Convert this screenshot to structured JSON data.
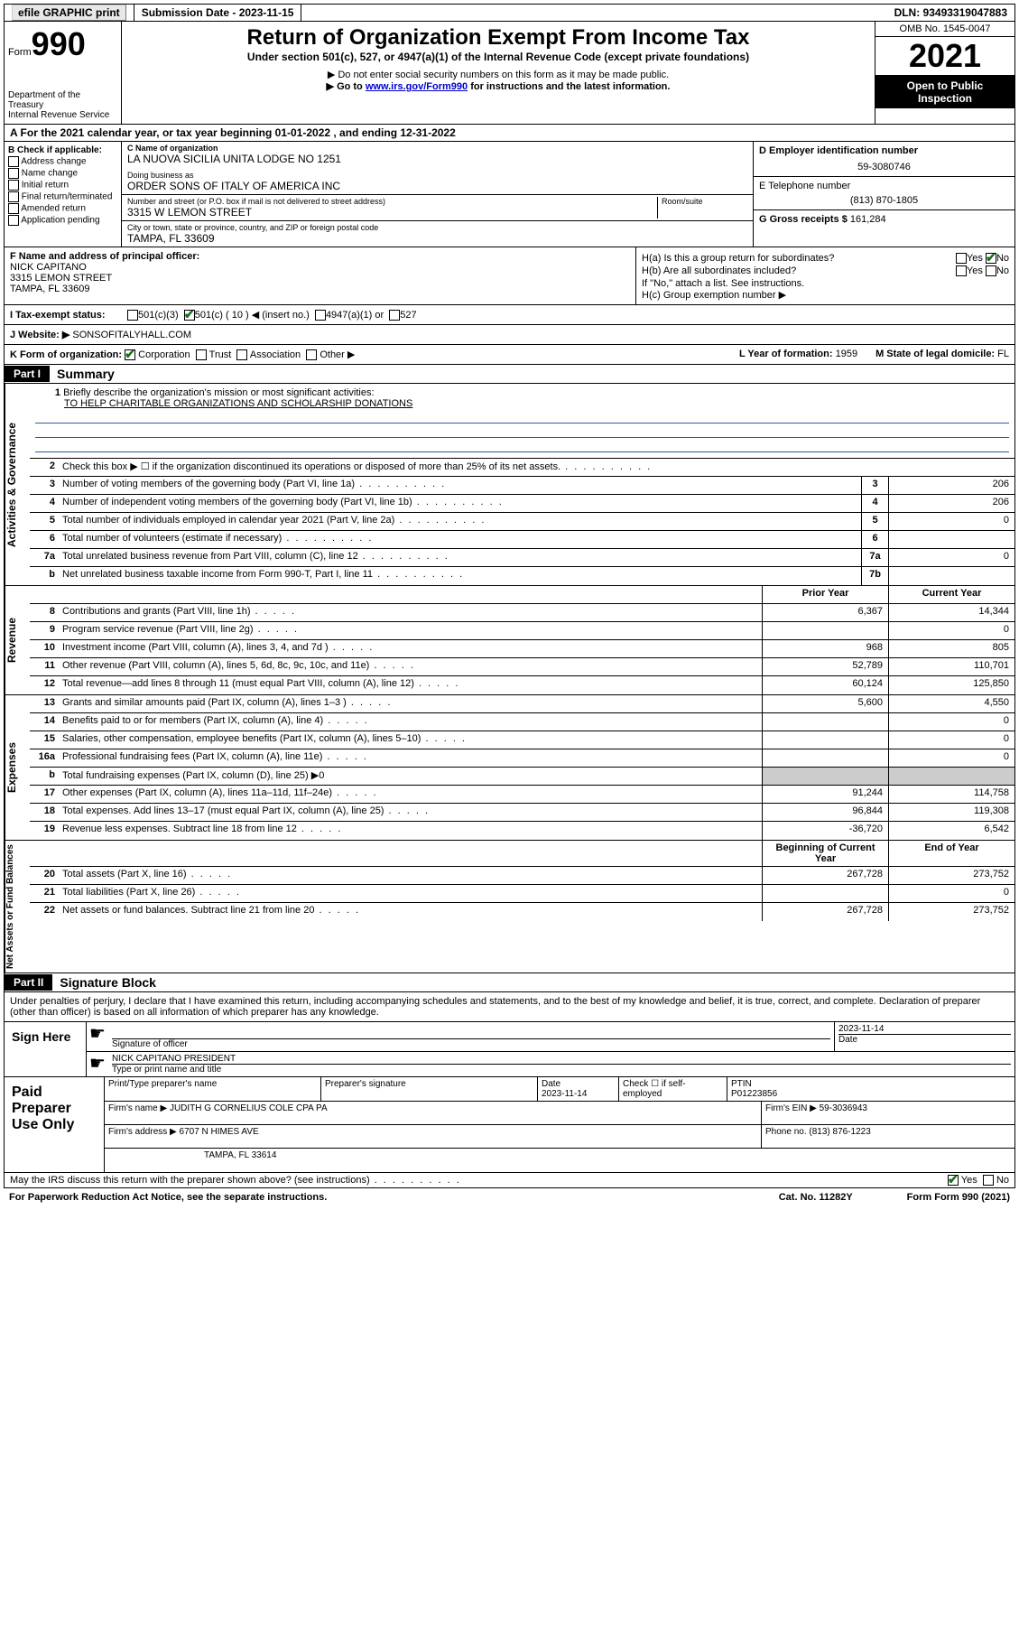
{
  "topbar": {
    "efile_label": "efile GRAPHIC print",
    "submission_label": "Submission Date - 2023-11-15",
    "dln_label": "DLN: 93493319047883"
  },
  "header": {
    "form_prefix": "Form",
    "form_num": "990",
    "dept1": "Department of the Treasury",
    "dept2": "Internal Revenue Service",
    "title": "Return of Organization Exempt From Income Tax",
    "subtitle": "Under section 501(c), 527, or 4947(a)(1) of the Internal Revenue Code (except private foundations)",
    "notice1": "▶ Do not enter social security numbers on this form as it may be made public.",
    "notice2_pre": "▶ Go to ",
    "notice2_link": "www.irs.gov/Form990",
    "notice2_post": " for instructions and the latest information.",
    "omb": "OMB No. 1545-0047",
    "year": "2021",
    "open_pub": "Open to Public Inspection"
  },
  "row_a": "A For the 2021 calendar year, or tax year beginning 01-01-2022   , and ending 12-31-2022",
  "col_b": {
    "hdr": "B Check if applicable:",
    "opts": [
      "Address change",
      "Name change",
      "Initial return",
      "Final return/terminated",
      "Amended return",
      "Application pending"
    ]
  },
  "col_c": {
    "name_label": "C Name of organization",
    "name": "LA NUOVA SICILIA UNITA LODGE NO 1251",
    "dba_label": "Doing business as",
    "dba": "ORDER SONS OF ITALY OF AMERICA INC",
    "addr_label": "Number and street (or P.O. box if mail is not delivered to street address)",
    "room_label": "Room/suite",
    "addr": "3315 W LEMON STREET",
    "city_label": "City or town, state or province, country, and ZIP or foreign postal code",
    "city": "TAMPA, FL  33609"
  },
  "col_right": {
    "d_label": "D Employer identification number",
    "d_val": "59-3080746",
    "e_label": "E Telephone number",
    "e_val": "(813) 870-1805",
    "g_label": "G Gross receipts $",
    "g_val": "161,284"
  },
  "sec_f": {
    "label": "F Name and address of principal officer:",
    "name": "NICK CAPITANO",
    "addr1": "3315 LEMON STREET",
    "addr2": "TAMPA, FL  33609"
  },
  "sec_h": {
    "ha": "H(a)  Is this a group return for subordinates?",
    "hb": "H(b)  Are all subordinates included?",
    "hb_note": "If \"No,\" attach a list. See instructions.",
    "hc": "H(c)  Group exemption number ▶",
    "yes": "Yes",
    "no": "No"
  },
  "line_i": {
    "label": "I   Tax-exempt status:",
    "o1": "501(c)(3)",
    "o2": "501(c) ( 10 ) ◀ (insert no.)",
    "o3": "4947(a)(1) or",
    "o4": "527"
  },
  "line_j": {
    "label": "J   Website: ▶",
    "val": "SONSOFITALYHALL.COM"
  },
  "line_k": {
    "label": "K Form of organization:",
    "o1": "Corporation",
    "o2": "Trust",
    "o3": "Association",
    "o4": "Other ▶",
    "l_label": "L Year of formation: ",
    "l_val": "1959",
    "m_label": "M State of legal domicile: ",
    "m_val": "FL"
  },
  "part1": {
    "bar": "Part I",
    "title": "Summary"
  },
  "mission": {
    "num": "1",
    "label": "Briefly describe the organization's mission or most significant activities:",
    "text": "TO HELP CHARITABLE ORGANIZATIONS AND SCHOLARSHIP DONATIONS"
  },
  "governance_lines": [
    {
      "n": "2",
      "d": "Check this box ▶ ☐  if the organization discontinued its operations or disposed of more than 25% of its net assets.",
      "r": "",
      "v": ""
    },
    {
      "n": "3",
      "d": "Number of voting members of the governing body (Part VI, line 1a)",
      "r": "3",
      "v": "206"
    },
    {
      "n": "4",
      "d": "Number of independent voting members of the governing body (Part VI, line 1b)",
      "r": "4",
      "v": "206"
    },
    {
      "n": "5",
      "d": "Total number of individuals employed in calendar year 2021 (Part V, line 2a)",
      "r": "5",
      "v": "0"
    },
    {
      "n": "6",
      "d": "Total number of volunteers (estimate if necessary)",
      "r": "6",
      "v": ""
    },
    {
      "n": "7a",
      "d": "Total unrelated business revenue from Part VIII, column (C), line 12",
      "r": "7a",
      "v": "0"
    },
    {
      "n": "b",
      "d": "Net unrelated business taxable income from Form 990-T, Part I, line 11",
      "r": "7b",
      "v": ""
    }
  ],
  "two_col_hdr": {
    "prior": "Prior Year",
    "current": "Current Year",
    "begin": "Beginning of Current Year",
    "end": "End of Year"
  },
  "revenue_lines": [
    {
      "n": "8",
      "d": "Contributions and grants (Part VIII, line 1h)",
      "p": "6,367",
      "c": "14,344"
    },
    {
      "n": "9",
      "d": "Program service revenue (Part VIII, line 2g)",
      "p": "",
      "c": "0"
    },
    {
      "n": "10",
      "d": "Investment income (Part VIII, column (A), lines 3, 4, and 7d )",
      "p": "968",
      "c": "805"
    },
    {
      "n": "11",
      "d": "Other revenue (Part VIII, column (A), lines 5, 6d, 8c, 9c, 10c, and 11e)",
      "p": "52,789",
      "c": "110,701"
    },
    {
      "n": "12",
      "d": "Total revenue—add lines 8 through 11 (must equal Part VIII, column (A), line 12)",
      "p": "60,124",
      "c": "125,850"
    }
  ],
  "expense_lines": [
    {
      "n": "13",
      "d": "Grants and similar amounts paid (Part IX, column (A), lines 1–3 )",
      "p": "5,600",
      "c": "4,550"
    },
    {
      "n": "14",
      "d": "Benefits paid to or for members (Part IX, column (A), line 4)",
      "p": "",
      "c": "0"
    },
    {
      "n": "15",
      "d": "Salaries, other compensation, employee benefits (Part IX, column (A), lines 5–10)",
      "p": "",
      "c": "0"
    },
    {
      "n": "16a",
      "d": "Professional fundraising fees (Part IX, column (A), line 11e)",
      "p": "",
      "c": "0"
    },
    {
      "n": "b",
      "d": "Total fundraising expenses (Part IX, column (D), line 25) ▶0",
      "p": "shade",
      "c": "shade"
    },
    {
      "n": "17",
      "d": "Other expenses (Part IX, column (A), lines 11a–11d, 11f–24e)",
      "p": "91,244",
      "c": "114,758"
    },
    {
      "n": "18",
      "d": "Total expenses. Add lines 13–17 (must equal Part IX, column (A), line 25)",
      "p": "96,844",
      "c": "119,308"
    },
    {
      "n": "19",
      "d": "Revenue less expenses. Subtract line 18 from line 12",
      "p": "-36,720",
      "c": "6,542"
    }
  ],
  "netassets_lines": [
    {
      "n": "20",
      "d": "Total assets (Part X, line 16)",
      "p": "267,728",
      "c": "273,752"
    },
    {
      "n": "21",
      "d": "Total liabilities (Part X, line 26)",
      "p": "",
      "c": "0"
    },
    {
      "n": "22",
      "d": "Net assets or fund balances. Subtract line 21 from line 20",
      "p": "267,728",
      "c": "273,752"
    }
  ],
  "vtabs": {
    "gov": "Activities & Governance",
    "rev": "Revenue",
    "exp": "Expenses",
    "net": "Net Assets or Fund Balances"
  },
  "part2": {
    "bar": "Part II",
    "title": "Signature Block"
  },
  "sig_intro": "Under penalties of perjury, I declare that I have examined this return, including accompanying schedules and statements, and to the best of my knowledge and belief, it is true, correct, and complete. Declaration of preparer (other than officer) is based on all information of which preparer has any knowledge.",
  "sign": {
    "here": "Sign Here",
    "sig_label": "Signature of officer",
    "date_label": "Date",
    "date_val": "2023-11-14",
    "name": "NICK CAPITANO  PRESIDENT",
    "name_label": "Type or print name and title"
  },
  "prep": {
    "label": "Paid Preparer Use Only",
    "r1": {
      "c1": "Print/Type preparer's name",
      "c2": "Preparer's signature",
      "c3": "Date",
      "c3v": "2023-11-14",
      "c4": "Check ☐ if self-employed",
      "c5": "PTIN",
      "c5v": "P01223856"
    },
    "r2": {
      "l": "Firm's name    ▶",
      "v": "JUDITH G CORNELIUS COLE CPA PA",
      "r": "Firm's EIN ▶",
      "rv": "59-3036943"
    },
    "r3": {
      "l": "Firm's address ▶",
      "v": "6707 N HIMES AVE",
      "r": "Phone no.",
      "rv": "(813) 876-1223"
    },
    "r4": {
      "v": "TAMPA, FL  33614"
    }
  },
  "footer": {
    "q": "May the IRS discuss this return with the preparer shown above? (see instructions)",
    "yes": "Yes",
    "no": "No",
    "paperwork": "For Paperwork Reduction Act Notice, see the separate instructions.",
    "cat": "Cat. No. 11282Y",
    "form": "Form 990 (2021)"
  }
}
